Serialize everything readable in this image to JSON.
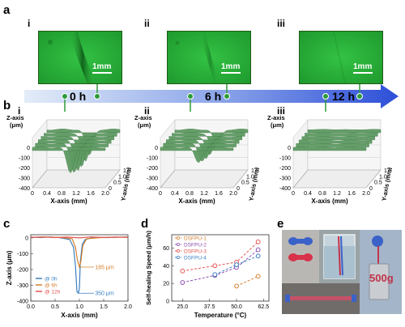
{
  "panel_labels": {
    "a": "a",
    "b": "b",
    "c": "c",
    "d": "d",
    "e": "e"
  },
  "panel_a": {
    "romans": [
      "i",
      "ii",
      "iii"
    ],
    "scale": "1mm",
    "timeline": [
      "0 h",
      "6 h",
      "12 h"
    ],
    "colors": {
      "micro_green": "#29b13a",
      "arrow_start": "#dfe9f6",
      "arrow_end": "#2d4fd8",
      "marker": "#2d9b3a"
    }
  },
  "panel_b": {
    "romans": [
      "i",
      "ii",
      "iii"
    ],
    "z_title": [
      "Z-axis",
      "(μm)"
    ],
    "z_ticks": [
      "0",
      "-100",
      "-200",
      "-300",
      "-400"
    ],
    "x_title": "X-axis (mm)",
    "x_ticks": [
      "0",
      "0.4",
      "0.8",
      "1.2",
      "1.6",
      "2.0"
    ],
    "y_title": "Y-axis (mm)",
    "y_ticks": [
      "1.5",
      "1.0",
      "0.5",
      "0"
    ],
    "surface_color": "#5e9a62"
  },
  "chart_c": {
    "type": "line",
    "xlabel": "X-axis (mm)",
    "ylabel": "Z-axis (μm)",
    "xlim": [
      0,
      2.0
    ],
    "ylim": [
      -400,
      20
    ],
    "x_ticks": [
      "0.0",
      "0.5",
      "1.0",
      "1.5",
      "2.0"
    ],
    "y_ticks": [
      "0",
      "-100",
      "-200",
      "-300",
      "-400"
    ],
    "series": [
      {
        "name": "@ 0h",
        "color": "#3b7fc1",
        "points": [
          [
            0,
            5
          ],
          [
            0.2,
            2
          ],
          [
            0.4,
            6
          ],
          [
            0.6,
            1
          ],
          [
            0.8,
            -10
          ],
          [
            0.88,
            -60
          ],
          [
            0.92,
            -180
          ],
          [
            0.95,
            -340
          ],
          [
            0.98,
            -350
          ],
          [
            1.0,
            -320
          ],
          [
            1.02,
            -150
          ],
          [
            1.06,
            -40
          ],
          [
            1.12,
            -10
          ],
          [
            1.3,
            4
          ],
          [
            1.6,
            2
          ],
          [
            2.0,
            6
          ]
        ]
      },
      {
        "name": "@ 6h",
        "color": "#d4812e",
        "points": [
          [
            0,
            4
          ],
          [
            0.3,
            5
          ],
          [
            0.6,
            3
          ],
          [
            0.85,
            -5
          ],
          [
            0.92,
            -60
          ],
          [
            0.96,
            -140
          ],
          [
            1.0,
            -185
          ],
          [
            1.03,
            -150
          ],
          [
            1.07,
            -50
          ],
          [
            1.15,
            -5
          ],
          [
            1.5,
            3
          ],
          [
            2.0,
            5
          ]
        ]
      },
      {
        "name": "@ 12h",
        "color": "#e3544f",
        "points": [
          [
            0,
            3
          ],
          [
            0.25,
            6
          ],
          [
            0.5,
            2
          ],
          [
            0.75,
            5
          ],
          [
            1.0,
            0
          ],
          [
            1.25,
            6
          ],
          [
            1.5,
            2
          ],
          [
            1.75,
            5
          ],
          [
            2.0,
            3
          ]
        ]
      }
    ],
    "annotations": [
      "185 μm",
      "350 μm"
    ]
  },
  "chart_d": {
    "type": "line",
    "xlabel": "Temperature (°C)",
    "ylabel": "Self-healing Speed (μm/h)",
    "xlim": [
      20,
      65
    ],
    "ylim": [
      0,
      75
    ],
    "x_ticks": [
      "25.0",
      "37.5",
      "50.0",
      "62.5"
    ],
    "y_ticks": [
      "0",
      "20",
      "40",
      "60"
    ],
    "series": [
      {
        "name": "DSFPU-1",
        "color": "#d4812e",
        "x": [
          50,
          60
        ],
        "y": [
          17,
          28
        ]
      },
      {
        "name": "DSFPU-2",
        "color": "#8e4fb0",
        "x": [
          25,
          40,
          50,
          60
        ],
        "y": [
          21,
          29,
          38,
          58
        ]
      },
      {
        "name": "DSFPU-3",
        "color": "#e3544f",
        "x": [
          25,
          40,
          50,
          60
        ],
        "y": [
          34,
          40,
          44,
          67
        ]
      },
      {
        "name": "DSFPU-4",
        "color": "#3b7fc1",
        "x": [
          40,
          50,
          60
        ],
        "y": [
          30,
          41,
          51
        ]
      }
    ]
  },
  "panel_e": {
    "weight_label": "500g"
  }
}
